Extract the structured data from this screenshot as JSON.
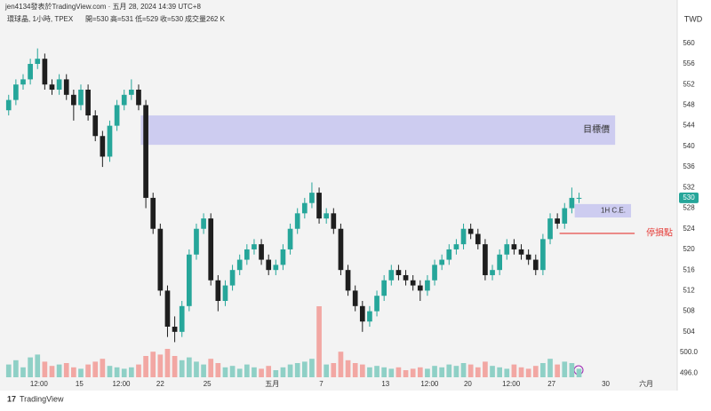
{
  "header": {
    "byline": "jen4134發表於TradingView.com · 五月 28, 2024 14:39 UTC+8",
    "symbol": "環球晶, 1小時, TPEX",
    "open": "開=530",
    "high": "高=531",
    "low": "低=529",
    "close": "收=530",
    "volume": "成交量262 K"
  },
  "footer": {
    "brand": "TradingView"
  },
  "chart_data": {
    "type": "candlestick",
    "currency": "TWD",
    "last_price": 530,
    "up_color": "#26a69a",
    "down_color": "#1e1e1e",
    "up_volume_color": "#8fd0c6",
    "down_volume_color": "#f2a7a3",
    "ylim": [
      492.6,
      565.3
    ],
    "xlim": [
      -1.2,
      92.6
    ],
    "yticks": [
      560,
      556,
      552,
      548,
      544,
      540,
      536,
      532,
      528,
      524,
      520,
      516,
      512,
      508,
      504,
      {
        "value": 500,
        "label": "500.0"
      },
      {
        "value": 496,
        "label": "496.0"
      }
    ],
    "xticks": [
      {
        "value": 4.2,
        "label": "12:00"
      },
      {
        "value": 9.8,
        "label": "15"
      },
      {
        "value": 15.6,
        "label": "12:00"
      },
      {
        "value": 21,
        "label": "22"
      },
      {
        "value": 27.5,
        "label": "25"
      },
      {
        "value": 36.5,
        "label": "五月"
      },
      {
        "value": 43.3,
        "label": "7"
      },
      {
        "value": 52.2,
        "label": "13"
      },
      {
        "value": 58.3,
        "label": "12:00"
      },
      {
        "value": 63.6,
        "label": "20"
      },
      {
        "value": 69.6,
        "label": "12:00"
      },
      {
        "value": 75.2,
        "label": "27"
      },
      {
        "value": 82.7,
        "label": "30"
      },
      {
        "value": 88.3,
        "label": "六月"
      }
    ],
    "ohlc": [
      [
        547,
        550,
        546,
        549
      ],
      [
        549,
        553,
        548,
        552
      ],
      [
        552,
        554,
        551,
        553
      ],
      [
        553,
        557,
        552,
        556
      ],
      [
        556,
        559,
        555,
        557
      ],
      [
        557,
        558,
        551,
        552
      ],
      [
        552,
        553,
        550,
        551
      ],
      [
        551,
        554,
        550,
        553
      ],
      [
        553,
        554,
        549,
        550
      ],
      [
        550,
        551,
        545,
        548
      ],
      [
        548,
        552,
        547,
        551
      ],
      [
        551,
        552,
        545,
        546
      ],
      [
        546,
        547,
        541,
        542
      ],
      [
        542,
        543,
        536,
        538
      ],
      [
        538,
        545,
        537,
        544
      ],
      [
        544,
        549,
        543,
        548
      ],
      [
        548,
        551,
        547,
        550
      ],
      [
        550,
        553,
        549,
        551
      ],
      [
        551,
        552,
        547,
        548
      ],
      [
        548,
        549,
        528,
        530
      ],
      [
        530,
        531,
        523,
        524
      ],
      [
        524,
        525,
        511,
        512
      ],
      [
        512,
        513,
        503,
        505
      ],
      [
        505,
        507,
        502,
        504
      ],
      [
        504,
        510,
        503,
        509
      ],
      [
        509,
        520,
        508,
        519
      ],
      [
        519,
        525,
        518,
        524
      ],
      [
        524,
        527,
        523,
        526
      ],
      [
        526,
        527,
        513,
        514
      ],
      [
        514,
        515,
        508,
        510
      ],
      [
        510,
        514,
        509,
        513
      ],
      [
        513,
        517,
        512,
        516
      ],
      [
        516,
        519,
        515,
        518
      ],
      [
        518,
        521,
        517,
        520
      ],
      [
        520,
        522,
        519,
        521
      ],
      [
        521,
        522,
        517,
        518
      ],
      [
        518,
        519,
        515,
        516
      ],
      [
        516,
        518,
        515,
        517
      ],
      [
        517,
        521,
        516,
        520
      ],
      [
        520,
        525,
        519,
        524
      ],
      [
        524,
        528,
        523,
        527
      ],
      [
        527,
        530,
        526,
        529
      ],
      [
        529,
        533,
        528,
        531
      ],
      [
        531,
        532,
        525,
        526
      ],
      [
        526,
        528,
        525,
        527
      ],
      [
        527,
        528,
        523,
        524
      ],
      [
        524,
        525,
        515,
        516
      ],
      [
        516,
        517,
        511,
        512
      ],
      [
        512,
        513,
        508,
        509
      ],
      [
        509,
        510,
        504,
        506
      ],
      [
        506,
        509,
        505,
        508
      ],
      [
        508,
        512,
        507,
        511
      ],
      [
        511,
        515,
        510,
        514
      ],
      [
        514,
        517,
        513,
        516
      ],
      [
        516,
        517,
        514,
        515
      ],
      [
        515,
        516,
        513,
        514
      ],
      [
        514,
        515,
        512,
        513
      ],
      [
        513,
        514,
        510,
        512
      ],
      [
        512,
        515,
        511,
        514
      ],
      [
        514,
        518,
        513,
        517
      ],
      [
        517,
        519,
        516,
        518
      ],
      [
        518,
        521,
        517,
        520
      ],
      [
        520,
        522,
        519,
        521
      ],
      [
        521,
        525,
        520,
        524
      ],
      [
        524,
        525,
        522,
        523
      ],
      [
        523,
        524,
        520,
        521
      ],
      [
        521,
        522,
        514,
        515
      ],
      [
        515,
        517,
        514,
        516
      ],
      [
        516,
        520,
        515,
        519
      ],
      [
        519,
        522,
        518,
        521
      ],
      [
        521,
        522,
        519,
        520
      ],
      [
        520,
        521,
        518,
        519
      ],
      [
        519,
        520,
        517,
        518
      ],
      [
        518,
        519,
        515,
        516
      ],
      [
        516,
        523,
        515,
        522
      ],
      [
        522,
        527,
        521,
        526
      ],
      [
        526,
        527,
        524,
        525
      ],
      [
        525,
        529,
        524,
        528
      ],
      [
        528,
        532,
        527,
        530
      ],
      [
        530,
        531,
        529,
        530
      ]
    ],
    "volume": [
      900,
      1200,
      700,
      1400,
      1600,
      1100,
      800,
      900,
      1000,
      700,
      600,
      900,
      1100,
      1300,
      800,
      700,
      600,
      700,
      900,
      1500,
      1800,
      1600,
      2000,
      1500,
      1200,
      1400,
      1100,
      900,
      1300,
      1000,
      700,
      800,
      600,
      900,
      700,
      600,
      800,
      500,
      700,
      900,
      1000,
      1100,
      1300,
      5000,
      900,
      1000,
      1800,
      1200,
      1000,
      900,
      700,
      800,
      700,
      600,
      700,
      500,
      600,
      700,
      600,
      800,
      700,
      900,
      800,
      1000,
      900,
      700,
      1100,
      800,
      700,
      600,
      900,
      700,
      600,
      800,
      1000,
      1300,
      900,
      1100,
      1000,
      600
    ],
    "annotations": [
      {
        "label": "目標價",
        "from": 540.3,
        "to": 546,
        "x": [
          18.3,
          84
        ],
        "color": "#c9c8f0"
      },
      {
        "label": "1H C.E.",
        "from": 526.2,
        "to": 528.8,
        "x": [
          78.4,
          86.2
        ],
        "color": "#c9c8f0"
      },
      {
        "label": "停損點",
        "level": 523.1,
        "x": [
          76.3,
          86.7
        ],
        "color": "#e53935"
      }
    ]
  }
}
